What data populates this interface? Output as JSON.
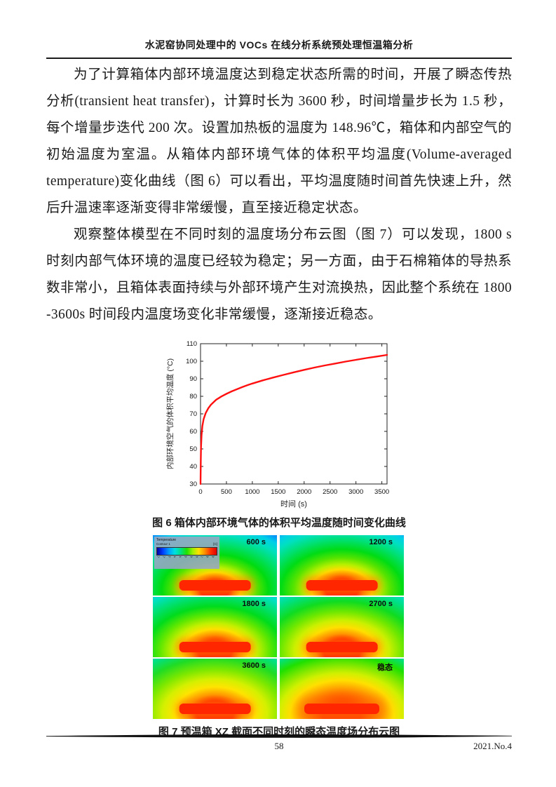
{
  "header": {
    "title": "水泥窑协同处理中的 VOCs 在线分析系统预处理恒温箱分析"
  },
  "paragraphs": [
    {
      "text": "为了计算箱体内部环境温度达到稳定状态所需的时间，开展了瞬态传热分析(transient heat transfer)，计算时长为 3600 秒，时间增量步长为 1.5 秒，每个增量步迭代 200 次。设置加热板的温度为 148.96℃，箱体和内部空气的初始温度为室温。从箱体内部环境气体的体积平均温度(Volume-averaged temperature)变化曲线（图 6）可以看出，平均温度随时间首先快速上升，然后升温速率逐渐变得非常缓慢，直至接近稳定状态。"
    },
    {
      "text": "观察整体模型在不同时刻的温度场分布云图（图 7）可以发现，1800 s 时刻内部气体环境的温度已经较为稳定；另一方面，由于石棉箱体的导热系数非常小，且箱体表面持续与外部环境产生对流换热，因此整个系统在 1800 -3600s 时间段内温度场变化非常缓慢，逐渐接近稳态。"
    }
  ],
  "chart_data": {
    "type": "line",
    "title": "",
    "xlabel": "时间 (s)",
    "ylabel": "内部环境空气的体积平均温度 (°C)",
    "xlim": [
      0,
      3600
    ],
    "ylim": [
      30,
      110
    ],
    "xticks": [
      0,
      500,
      1000,
      1500,
      2000,
      2500,
      3000,
      3500
    ],
    "yticks": [
      30,
      40,
      50,
      60,
      70,
      80,
      90,
      100,
      110
    ],
    "grid": false,
    "box": true,
    "legend_position": "none",
    "series": [
      {
        "name": "内部环境空气体积平均温度",
        "color": "#ff0f0f",
        "points": [
          [
            0,
            30
          ],
          [
            5,
            44
          ],
          [
            10,
            51
          ],
          [
            20,
            58
          ],
          [
            35,
            63
          ],
          [
            60,
            67
          ],
          [
            100,
            70.5
          ],
          [
            150,
            73.2
          ],
          [
            200,
            75.2
          ],
          [
            300,
            78
          ],
          [
            400,
            79.9
          ],
          [
            500,
            81.4
          ],
          [
            600,
            82.8
          ],
          [
            700,
            84
          ],
          [
            800,
            85.2
          ],
          [
            900,
            86.3
          ],
          [
            1000,
            87.3
          ],
          [
            1200,
            89.1
          ],
          [
            1400,
            90.7
          ],
          [
            1600,
            92.2
          ],
          [
            1800,
            93.7
          ],
          [
            2000,
            95.1
          ],
          [
            2200,
            96.4
          ],
          [
            2400,
            97.6
          ],
          [
            2600,
            98.7
          ],
          [
            2800,
            99.8
          ],
          [
            3000,
            100.8
          ],
          [
            3200,
            101.8
          ],
          [
            3400,
            102.7
          ],
          [
            3600,
            103.6
          ]
        ]
      }
    ]
  },
  "figure6": {
    "caption": "图 6 箱体内部环境气体的体积平均温度随时间变化曲线"
  },
  "figure7": {
    "caption": "图 7 预温箱 XZ 截面不同时刻的瞬态温度场分布云图",
    "legend": {
      "title": "Temperature",
      "subtitle": "Contour 1",
      "unit": "[C]",
      "ticks": [
        "22.0",
        "28.7",
        "35.4",
        "42.1",
        "48.8",
        "55.4",
        "62.1",
        "68.8",
        "75.5",
        "82.2",
        "88.9",
        "95.6",
        "102.3",
        "108.9",
        "115.6",
        "122.3",
        "129.0",
        "135.7",
        "142.4",
        "149.0"
      ]
    },
    "panels": [
      {
        "label": "600 s",
        "stage": "t600"
      },
      {
        "label": "1200 s",
        "stage": "t1200"
      },
      {
        "label": "1800 s",
        "stage": "t1800"
      },
      {
        "label": "2700 s",
        "stage": "t2700"
      },
      {
        "label": "3600 s",
        "stage": "t3600"
      },
      {
        "label": "稳态",
        "stage": "steady"
      }
    ]
  },
  "footer": {
    "page_number": "58",
    "issue": "2021.No.4"
  },
  "colors": {
    "curve": "#ff0f0f",
    "plate": "#ff2600",
    "text": "#1a1a1a"
  }
}
